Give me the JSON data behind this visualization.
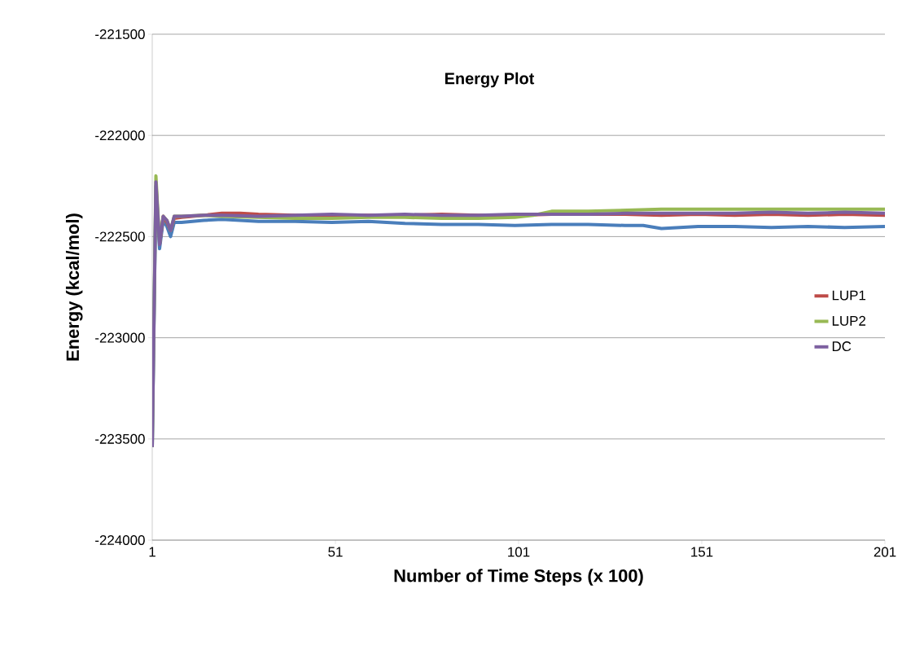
{
  "chart_data": {
    "type": "line",
    "title": "Energy Plot",
    "xlabel": "Number of Time Steps (x 100)",
    "ylabel": "Energy (kcal/mol)",
    "xlim": [
      1,
      201
    ],
    "xticks": [
      1,
      51,
      101,
      151,
      201
    ],
    "ylim": [
      -224000,
      -221500
    ],
    "yticks": [
      -224000,
      -223500,
      -223000,
      -222500,
      -222000,
      -221500
    ],
    "grid": "y",
    "legend": "right",
    "marker": "none",
    "line_style": "solid",
    "series": [
      {
        "color": "#4a7ebb",
        "x": [
          1,
          2,
          3,
          4,
          5,
          6,
          7,
          9,
          15,
          20,
          30,
          40,
          50,
          60,
          70,
          80,
          90,
          100,
          110,
          120,
          130,
          135,
          140,
          150,
          160,
          170,
          180,
          190,
          201
        ],
        "values": [
          -223540,
          -222250,
          -222560,
          -222420,
          -222450,
          -222500,
          -222430,
          -222430,
          -222420,
          -222415,
          -222425,
          -222425,
          -222430,
          -222425,
          -222435,
          -222440,
          -222440,
          -222445,
          -222440,
          -222440,
          -222445,
          -222445,
          -222460,
          -222450,
          -222450,
          -222455,
          -222450,
          -222455,
          -222450
        ]
      },
      {
        "name": "LUP1",
        "color": "#be4b48",
        "x": [
          3,
          4,
          5,
          6,
          7,
          9,
          15,
          20,
          25,
          30,
          40,
          50,
          60,
          70,
          80,
          90,
          100,
          110,
          120,
          130,
          140,
          150,
          160,
          170,
          180,
          190,
          201
        ],
        "values": [
          -222540,
          -222400,
          -222430,
          -222470,
          -222410,
          -222405,
          -222395,
          -222385,
          -222385,
          -222390,
          -222395,
          -222395,
          -222395,
          -222395,
          -222390,
          -222395,
          -222395,
          -222390,
          -222390,
          -222390,
          -222395,
          -222390,
          -222395,
          -222390,
          -222395,
          -222390,
          -222395
        ]
      },
      {
        "name": "LUP2",
        "color": "#98b954",
        "x": [
          1,
          2,
          3,
          4,
          5,
          6,
          7,
          9,
          15,
          20,
          30,
          40,
          50,
          60,
          70,
          80,
          90,
          100,
          105,
          110,
          120,
          130,
          140,
          150,
          160,
          170,
          180,
          190,
          201
        ],
        "values": [
          -223540,
          -222200,
          -222530,
          -222400,
          -222420,
          -222470,
          -222400,
          -222400,
          -222395,
          -222400,
          -222405,
          -222410,
          -222410,
          -222405,
          -222405,
          -222410,
          -222410,
          -222405,
          -222395,
          -222375,
          -222375,
          -222370,
          -222365,
          -222365,
          -222365,
          -222365,
          -222365,
          -222365,
          -222365
        ]
      },
      {
        "name": "DC",
        "color": "#7d60a0",
        "x": [
          1,
          2,
          3,
          4,
          5,
          6,
          7,
          9,
          15,
          20,
          30,
          40,
          50,
          60,
          70,
          80,
          90,
          100,
          110,
          120,
          130,
          140,
          150,
          160,
          170,
          180,
          190,
          201
        ],
        "values": [
          -223540,
          -222230,
          -222540,
          -222400,
          -222420,
          -222470,
          -222400,
          -222400,
          -222395,
          -222395,
          -222400,
          -222395,
          -222390,
          -222395,
          -222390,
          -222395,
          -222395,
          -222390,
          -222390,
          -222390,
          -222385,
          -222385,
          -222385,
          -222385,
          -222380,
          -222385,
          -222380,
          -222385
        ]
      }
    ]
  }
}
